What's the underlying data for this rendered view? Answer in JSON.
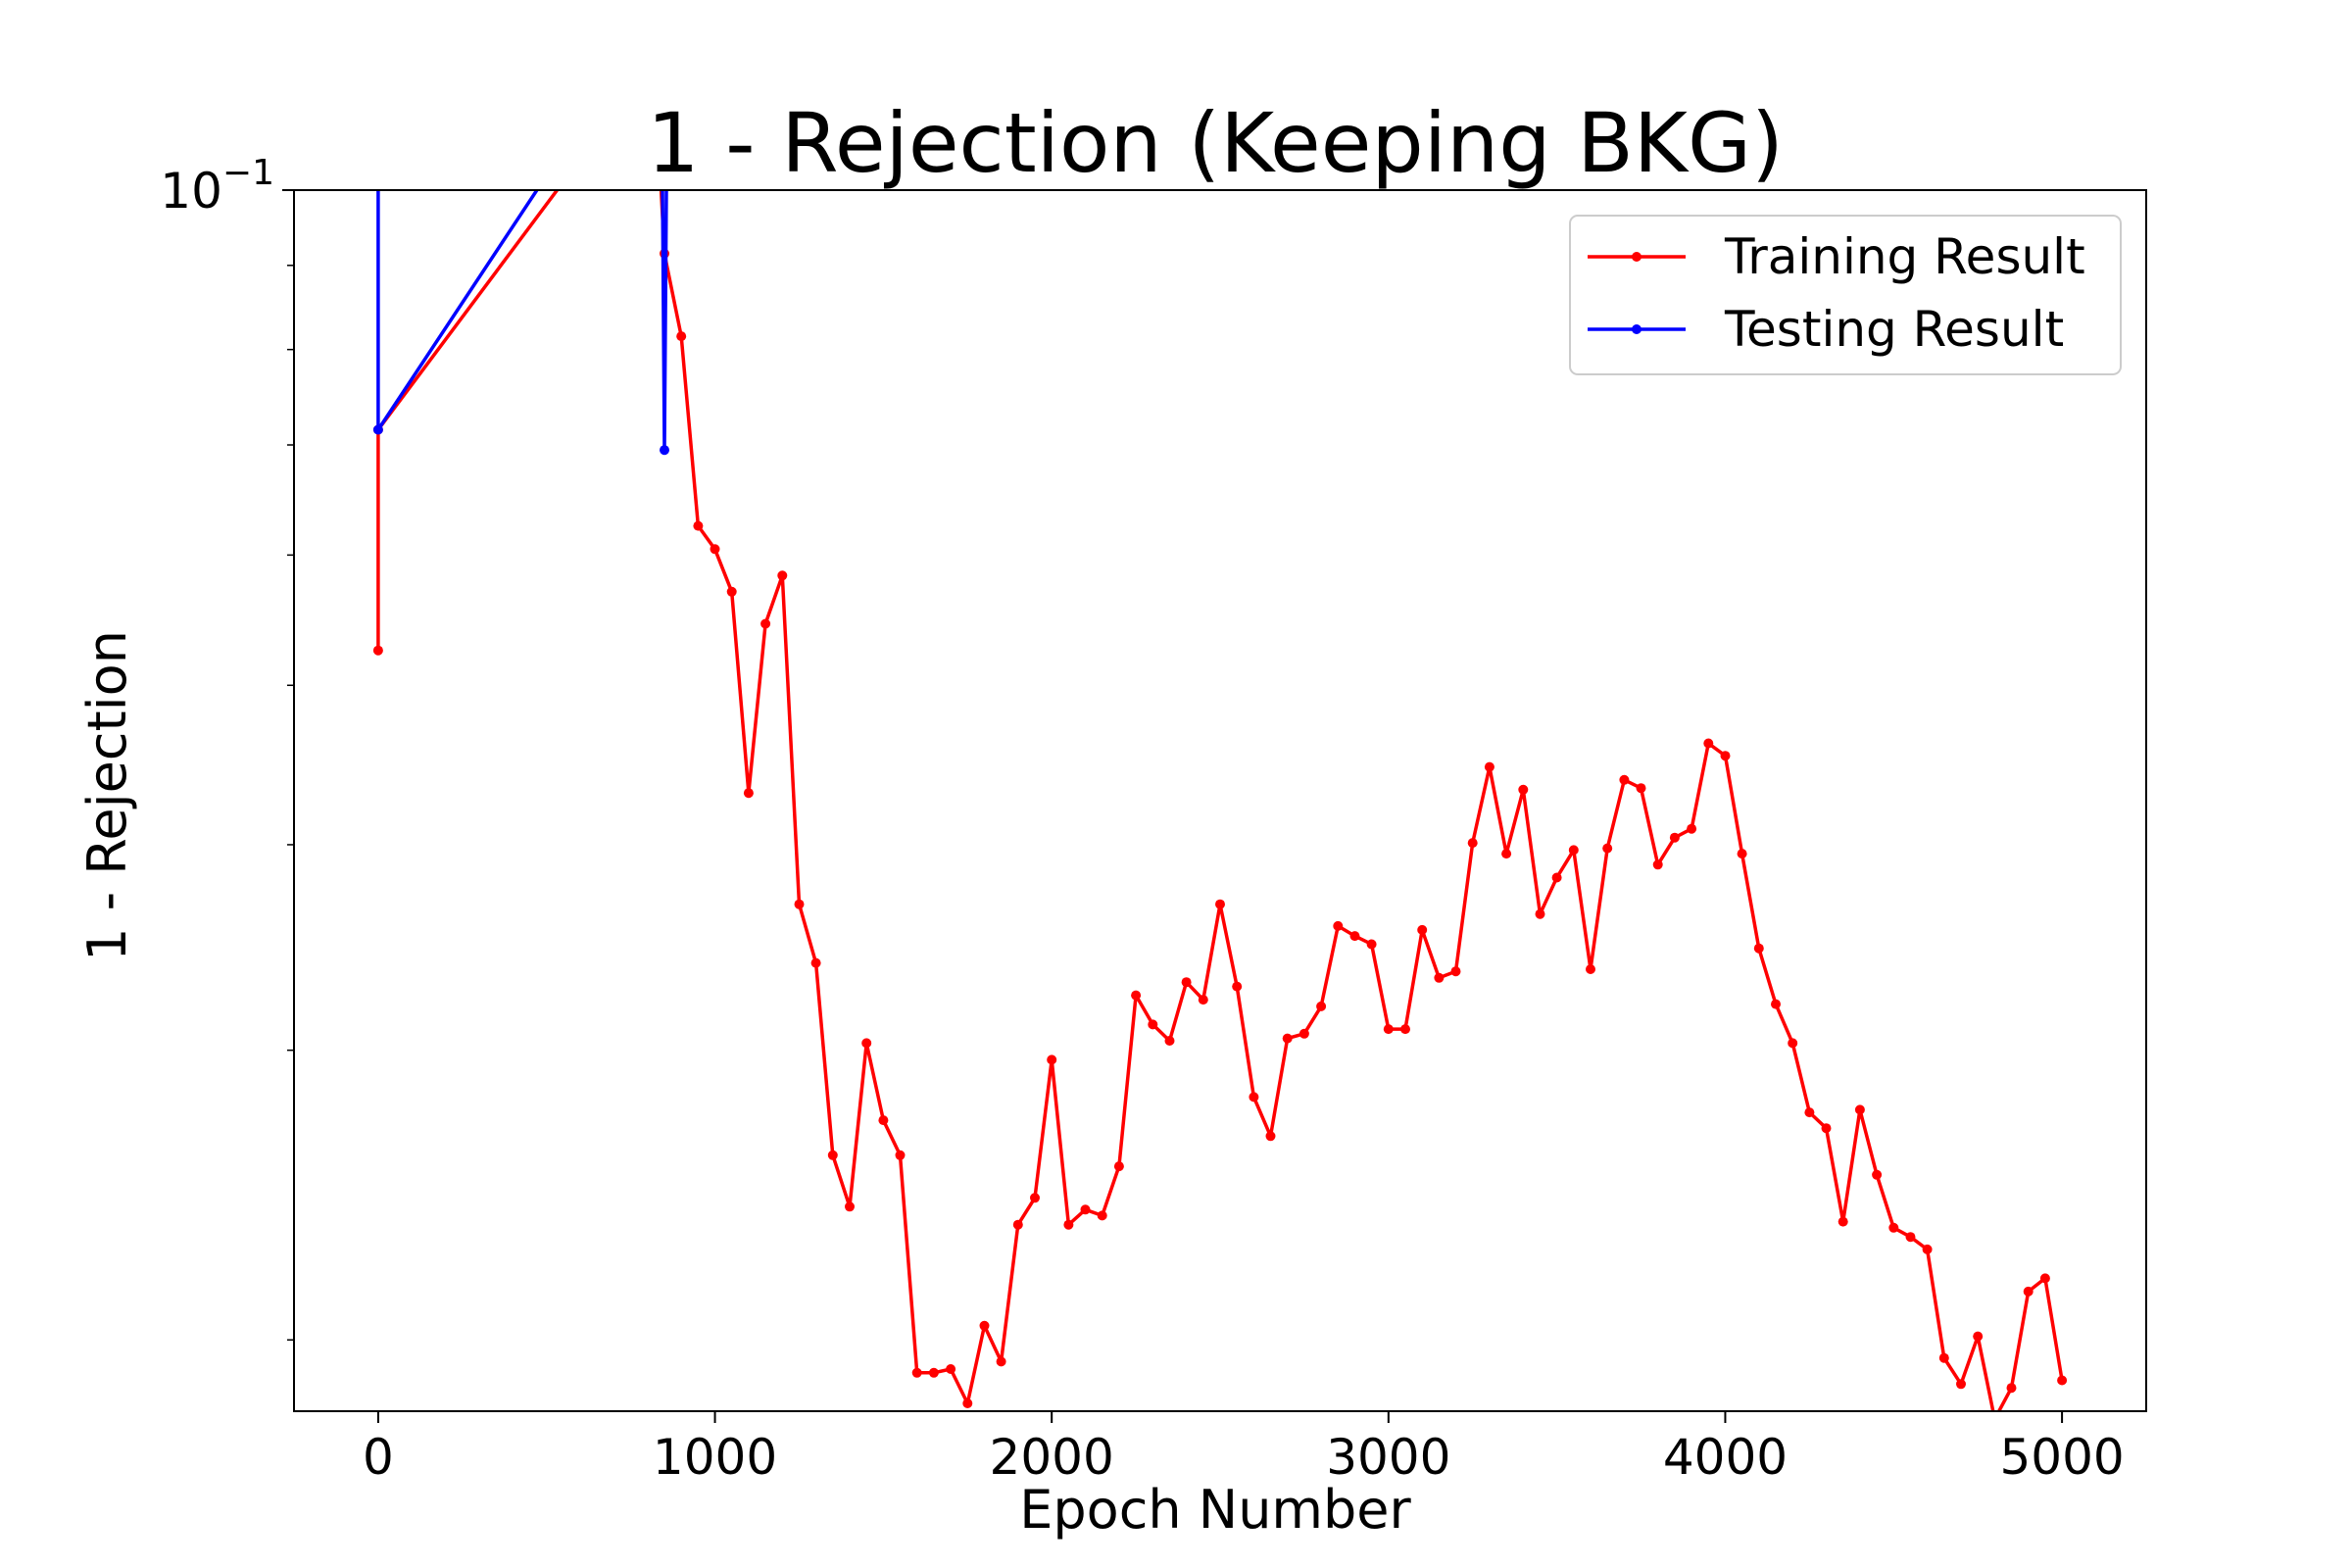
{
  "chart_data": {
    "type": "line",
    "title": "1 - Rejection (Keeping BKG)",
    "xlabel": "Epoch Number",
    "ylabel": "1 - Rejection",
    "xlim": [
      -250,
      5250
    ],
    "ylim": [
      0.0181,
      0.1
    ],
    "yscale": "log",
    "grid": false,
    "legend_position": "top-right",
    "x_ticks": [
      0,
      1000,
      2000,
      3000,
      4000,
      5000
    ],
    "x_tick_labels": [
      "0",
      "1000",
      "2000",
      "3000",
      "4000",
      "5000"
    ],
    "y_tick_labels": [
      {
        "value": 0.1,
        "base": "10",
        "exp": "−1"
      }
    ],
    "series": [
      {
        "name": "Training Result",
        "color": "#ff0000",
        "points": [
          [
            0,
            0.0525
          ],
          [
            0,
            0.0715
          ],
          [
            820,
            0.12
          ],
          [
            850,
            0.0915
          ],
          [
            900,
            0.0815
          ],
          [
            950,
            0.0625
          ],
          [
            1000,
            0.0605
          ],
          [
            1050,
            0.057
          ],
          [
            1100,
            0.043
          ],
          [
            1150,
            0.0545
          ],
          [
            1200,
            0.0583
          ],
          [
            1250,
            0.0368
          ],
          [
            1300,
            0.0339
          ],
          [
            1350,
            0.0259
          ],
          [
            1400,
            0.0241
          ],
          [
            1450,
            0.0303
          ],
          [
            1500,
            0.0272
          ],
          [
            1550,
            0.0259
          ],
          [
            1600,
            0.0191
          ],
          [
            1650,
            0.0191
          ],
          [
            1700,
            0.0192
          ],
          [
            1750,
            0.0183
          ],
          [
            1800,
            0.0204
          ],
          [
            1850,
            0.0194
          ],
          [
            1900,
            0.0235
          ],
          [
            1950,
            0.0244
          ],
          [
            2000,
            0.0296
          ],
          [
            2050,
            0.0235
          ],
          [
            2100,
            0.024
          ],
          [
            2150,
            0.0238
          ],
          [
            2200,
            0.0255
          ],
          [
            2250,
            0.0324
          ],
          [
            2300,
            0.0311
          ],
          [
            2350,
            0.0304
          ],
          [
            2400,
            0.033
          ],
          [
            2450,
            0.0322
          ],
          [
            2500,
            0.0368
          ],
          [
            2550,
            0.0328
          ],
          [
            2600,
            0.0281
          ],
          [
            2650,
            0.0266
          ],
          [
            2700,
            0.0305
          ],
          [
            2750,
            0.0307
          ],
          [
            2800,
            0.0319
          ],
          [
            2850,
            0.0357
          ],
          [
            2900,
            0.0352
          ],
          [
            2950,
            0.0348
          ],
          [
            3000,
            0.0309
          ],
          [
            3050,
            0.0309
          ],
          [
            3100,
            0.0355
          ],
          [
            3150,
            0.0332
          ],
          [
            3200,
            0.0335
          ],
          [
            3250,
            0.0401
          ],
          [
            3300,
            0.0446
          ],
          [
            3350,
            0.0395
          ],
          [
            3400,
            0.0432
          ],
          [
            3450,
            0.0363
          ],
          [
            3500,
            0.0382
          ],
          [
            3550,
            0.0397
          ],
          [
            3600,
            0.0336
          ],
          [
            3650,
            0.0398
          ],
          [
            3700,
            0.0438
          ],
          [
            3750,
            0.0433
          ],
          [
            3800,
            0.0389
          ],
          [
            3850,
            0.0404
          ],
          [
            3900,
            0.0409
          ],
          [
            3950,
            0.0461
          ],
          [
            4000,
            0.0453
          ],
          [
            4050,
            0.0395
          ],
          [
            4100,
            0.0346
          ],
          [
            4150,
            0.032
          ],
          [
            4200,
            0.0303
          ],
          [
            4250,
            0.0275
          ],
          [
            4300,
            0.0269
          ],
          [
            4350,
            0.0236
          ],
          [
            4400,
            0.0276
          ],
          [
            4450,
            0.0252
          ],
          [
            4500,
            0.0234
          ],
          [
            4550,
            0.0231
          ],
          [
            4600,
            0.0227
          ],
          [
            4650,
            0.0195
          ],
          [
            4700,
            0.0188
          ],
          [
            4750,
            0.0201
          ],
          [
            4800,
            0.0179
          ],
          [
            4850,
            0.0187
          ],
          [
            4900,
            0.0214
          ],
          [
            4950,
            0.0218
          ],
          [
            5000,
            0.0189
          ]
        ]
      },
      {
        "name": "Testing Result",
        "color": "#0000ff",
        "points": [
          [
            0,
            0.12
          ],
          [
            0,
            0.0715
          ],
          [
            840,
            0.13
          ],
          [
            850,
            0.0695
          ],
          [
            860,
            0.13
          ]
        ]
      }
    ]
  }
}
